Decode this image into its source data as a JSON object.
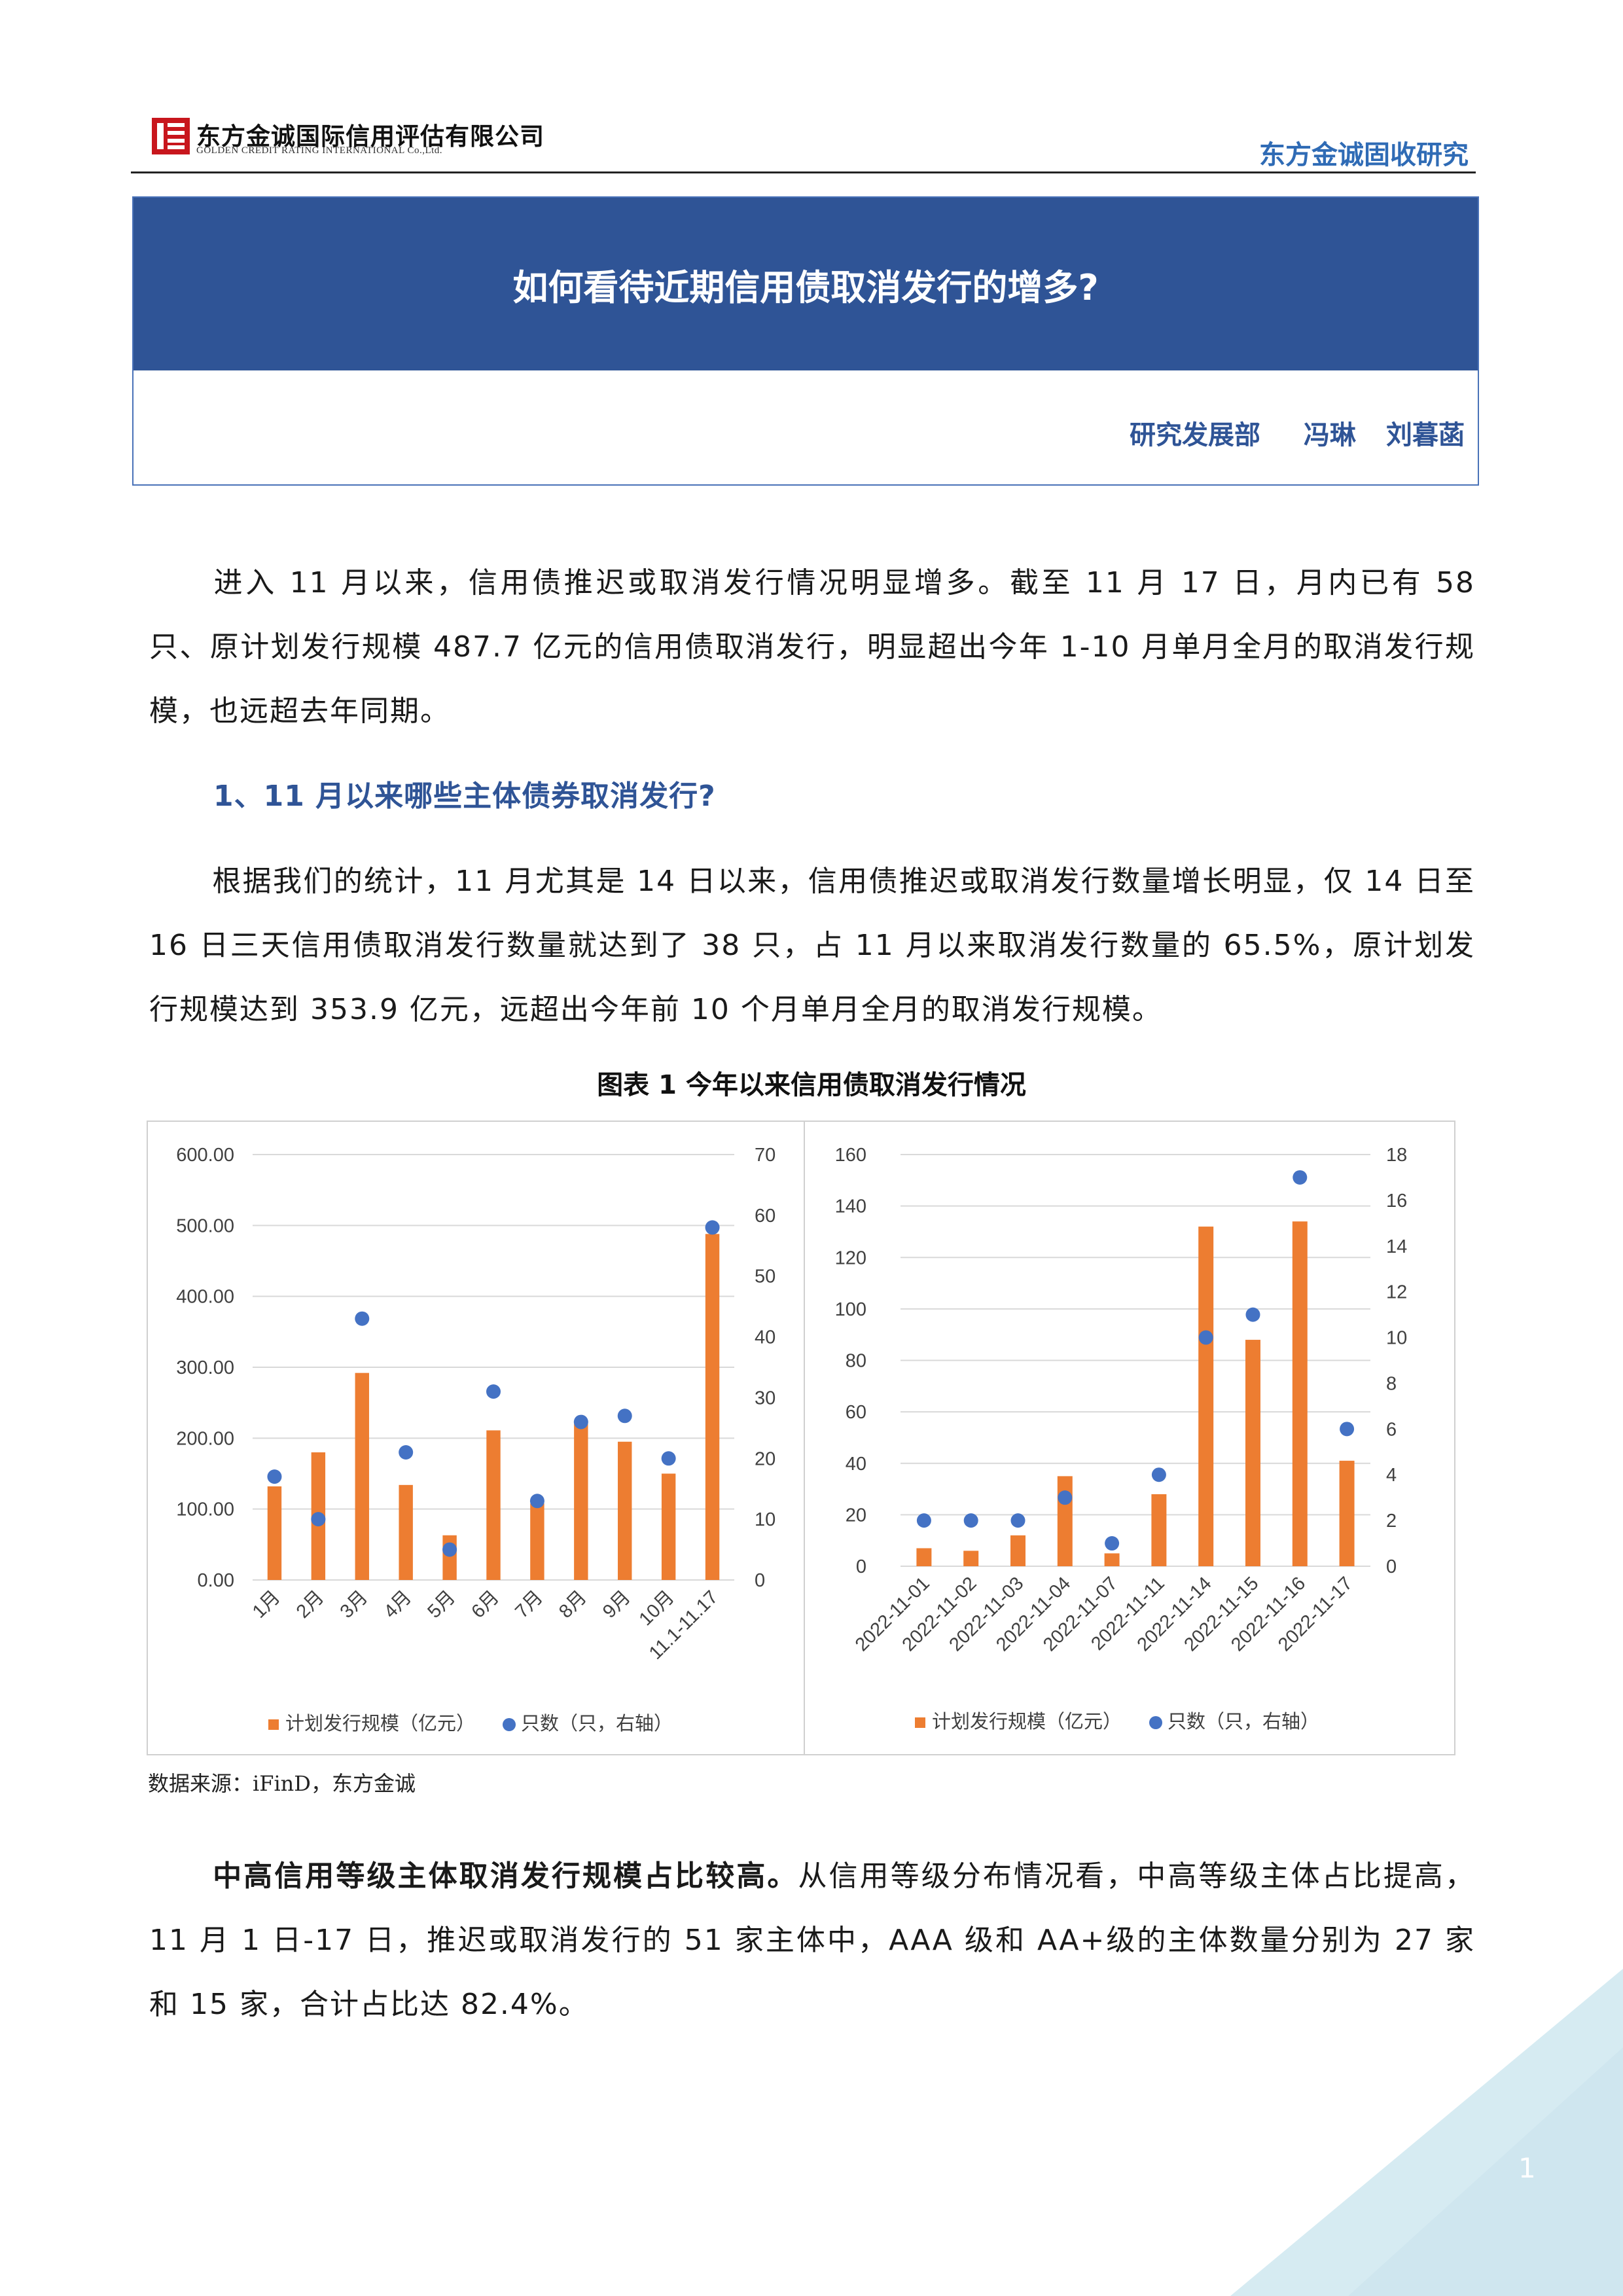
{
  "header": {
    "company_cn": "东方金诚国际信用评估有限公司",
    "company_en": "GOLDEN CREDIT RATING INTERNATIONAL Co.,Ltd.",
    "series": "东方金诚固收研究"
  },
  "title": "如何看待近期信用债取消发行的增多?",
  "authors": {
    "department": "研究发展部",
    "author1": "冯琳",
    "author2": "刘暮菡"
  },
  "para1": "进入 11 月以来，信用债推迟或取消发行情况明显增多。截至 11 月 17 日，月内已有 58 只、原计划发行规模 487.7 亿元的信用债取消发行，明显超出今年 1-10 月单月全月的取消发行规模，也远超去年同期。",
  "heading1": "1、11 月以来哪些主体债券取消发行?",
  "para2": "根据我们的统计，11 月尤其是 14 日以来，信用债推迟或取消发行数量增长明显，仅 14 日至 16 日三天信用债取消发行数量就达到了 38 只，占 11 月以来取消发行数量的 65.5%，原计划发行规模达到 353.9 亿元，远超出今年前 10 个月单月全月的取消发行规模。",
  "figure_caption": "图表 1  今年以来信用债取消发行情况",
  "source_note": "数据来源：iFinD，东方金诚",
  "para3_bold": "中高信用等级主体取消发行规模占比较高。",
  "para3_rest": "从信用等级分布情况看，中高等级主体占比提高，11 月 1 日-17 日，推迟或取消发行的 51 家主体中，AAA 级和 AA+级的主体数量分别为 27 家和 15 家，合计占比达 82.4%。",
  "page_number": "1",
  "colors": {
    "bar": "#ed7d31",
    "dot": "#4472c4",
    "title_band": "#2f5496",
    "accent": "#2f6bb5"
  },
  "chart_data": [
    {
      "type": "bar",
      "categories": [
        "1月",
        "2月",
        "3月",
        "4月",
        "5月",
        "6月",
        "7月",
        "8月",
        "9月",
        "10月",
        "11.1-11.17"
      ],
      "series": [
        {
          "name": "计划发行规模（亿元）",
          "axis": "left",
          "kind": "bar",
          "values": [
            132,
            180,
            292,
            134,
            63,
            211,
            108,
            220,
            195,
            150,
            488
          ]
        },
        {
          "name": "只数（只，右轴）",
          "axis": "right",
          "kind": "scatter",
          "values": [
            17,
            10,
            43,
            21,
            5,
            31,
            13,
            26,
            27,
            20,
            58
          ]
        }
      ],
      "ylim_left": [
        0,
        600
      ],
      "yticks_left": [
        "0.00",
        "100.00",
        "200.00",
        "300.00",
        "400.00",
        "500.00",
        "600.00"
      ],
      "ylim_right": [
        0,
        70
      ],
      "yticks_right": [
        "0",
        "10",
        "20",
        "30",
        "40",
        "50",
        "60",
        "70"
      ],
      "legend": "bottom",
      "grid": true
    },
    {
      "type": "bar",
      "categories": [
        "2022-11-01",
        "2022-11-02",
        "2022-11-03",
        "2022-11-04",
        "2022-11-07",
        "2022-11-11",
        "2022-11-14",
        "2022-11-15",
        "2022-11-16",
        "2022-11-17"
      ],
      "series": [
        {
          "name": "计划发行规模（亿元）",
          "axis": "left",
          "kind": "bar",
          "values": [
            7,
            6,
            12,
            35,
            5,
            28,
            132,
            88,
            134,
            41
          ]
        },
        {
          "name": "只数（只，右轴）",
          "axis": "right",
          "kind": "scatter",
          "values": [
            2,
            2,
            2,
            3,
            1,
            4,
            10,
            11,
            17,
            6
          ]
        }
      ],
      "ylim_left": [
        0,
        160
      ],
      "yticks_left": [
        "0",
        "20",
        "40",
        "60",
        "80",
        "100",
        "120",
        "140",
        "160"
      ],
      "ylim_right": [
        0,
        18
      ],
      "yticks_right": [
        "0",
        "2",
        "4",
        "6",
        "8",
        "10",
        "12",
        "14",
        "16",
        "18"
      ],
      "legend": "bottom",
      "grid": true
    }
  ]
}
